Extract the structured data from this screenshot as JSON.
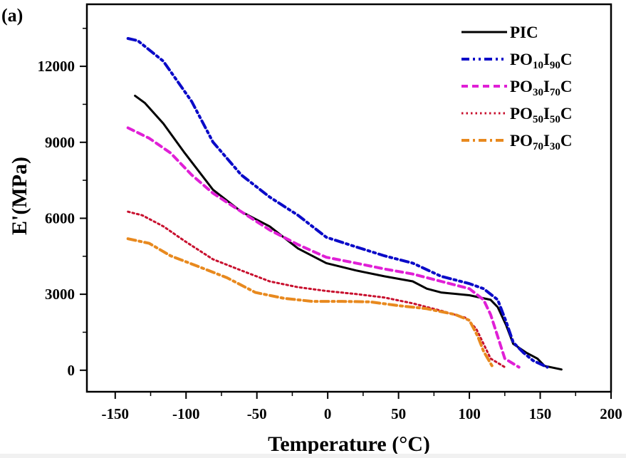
{
  "chart_data": {
    "type": "line",
    "panel_label": "(a)",
    "title": "",
    "xlabel": "Temperature (°C)",
    "ylabel": "E'(MPa)",
    "xlim": [
      -170,
      200
    ],
    "ylim": [
      -850,
      14450
    ],
    "x_ticks": [
      -150,
      -100,
      -50,
      0,
      50,
      100,
      150,
      200
    ],
    "x_tick_labels": [
      "-150",
      "-100",
      "-50",
      "0",
      "50",
      "100",
      "150",
      "200"
    ],
    "x_minor_ticks": [
      -125,
      -75,
      -25,
      25,
      75,
      125,
      175
    ],
    "y_ticks": [
      0,
      3000,
      6000,
      9000,
      12000
    ],
    "y_tick_labels": [
      "0",
      "3000",
      "6000",
      "9000",
      "12000"
    ],
    "y_minor_ticks": [
      1500,
      4500,
      7500,
      10500,
      13500
    ],
    "grid": false,
    "legend_position": "top-right",
    "series": [
      {
        "name": "PIC",
        "label_parts": [
          {
            "t": "PIC",
            "sub": false
          }
        ],
        "color": "#000000",
        "style": "solid",
        "x": [
          -136,
          -129,
          -116,
          -101,
          -81,
          -61,
          -41,
          -21,
          -1,
          20,
          40,
          60,
          70,
          80,
          100,
          115,
          120,
          126,
          131,
          140,
          148,
          153,
          165
        ],
        "y": [
          10840,
          10550,
          9740,
          8580,
          7130,
          6260,
          5680,
          4810,
          4230,
          3940,
          3710,
          3510,
          3220,
          3070,
          2960,
          2780,
          2490,
          1770,
          1040,
          700,
          460,
          170,
          30
        ]
      },
      {
        "name": "PO10I90C",
        "label_parts": [
          {
            "t": "PO",
            "sub": false
          },
          {
            "t": "10",
            "sub": true
          },
          {
            "t": "I",
            "sub": false
          },
          {
            "t": "90",
            "sub": true
          },
          {
            "t": "C",
            "sub": false
          }
        ],
        "color": "#0a0ac8",
        "style": "dash-dot-dot",
        "x": [
          -141,
          -134,
          -116,
          -96,
          -81,
          -61,
          -41,
          -21,
          -1,
          20,
          40,
          60,
          80,
          100,
          110,
          120,
          126,
          131,
          138,
          145,
          155
        ],
        "y": [
          13100,
          13010,
          12200,
          10610,
          9010,
          7710,
          6840,
          6120,
          5250,
          4870,
          4520,
          4230,
          3710,
          3420,
          3220,
          2780,
          1910,
          1100,
          700,
          380,
          120
        ]
      },
      {
        "name": "PO30I70C",
        "label_parts": [
          {
            "t": "PO",
            "sub": false
          },
          {
            "t": "30",
            "sub": true
          },
          {
            "t": "I",
            "sub": false
          },
          {
            "t": "70",
            "sub": true
          },
          {
            "t": "C",
            "sub": false
          }
        ],
        "color": "#e01fd6",
        "style": "dash",
        "x": [
          -141,
          -126,
          -111,
          -96,
          -81,
          -61,
          -41,
          -21,
          -1,
          20,
          40,
          60,
          80,
          100,
          110,
          115,
          120,
          125,
          135
        ],
        "y": [
          9570,
          9160,
          8580,
          7710,
          6990,
          6260,
          5540,
          4960,
          4460,
          4230,
          4000,
          3800,
          3510,
          3220,
          2780,
          2200,
          1330,
          460,
          120
        ]
      },
      {
        "name": "PO50I50C",
        "label_parts": [
          {
            "t": "PO",
            "sub": false
          },
          {
            "t": "50",
            "sub": true
          },
          {
            "t": "I",
            "sub": false
          },
          {
            "t": "50",
            "sub": true
          },
          {
            "t": "C",
            "sub": false
          }
        ],
        "color": "#c8102e",
        "style": "dot",
        "x": [
          -141,
          -131,
          -116,
          -101,
          -81,
          -61,
          -41,
          -21,
          -1,
          20,
          40,
          60,
          80,
          98,
          105,
          110,
          115,
          126
        ],
        "y": [
          6260,
          6120,
          5680,
          5100,
          4380,
          3940,
          3510,
          3280,
          3130,
          3010,
          2870,
          2640,
          2350,
          2060,
          1620,
          1040,
          460,
          90
        ]
      },
      {
        "name": "PO70I30C",
        "label_parts": [
          {
            "t": "PO",
            "sub": false
          },
          {
            "t": "70",
            "sub": true
          },
          {
            "t": "I",
            "sub": false
          },
          {
            "t": "30",
            "sub": true
          },
          {
            "t": "C",
            "sub": false
          }
        ],
        "color": "#e8891e",
        "style": "dash-dot",
        "x": [
          -141,
          -126,
          -111,
          -91,
          -71,
          -51,
          -31,
          -11,
          10,
          30,
          50,
          70,
          90,
          100,
          106,
          110,
          116
        ],
        "y": [
          5190,
          5010,
          4520,
          4090,
          3650,
          3070,
          2840,
          2720,
          2720,
          2700,
          2550,
          2430,
          2200,
          1970,
          1330,
          750,
          170
        ]
      }
    ]
  }
}
